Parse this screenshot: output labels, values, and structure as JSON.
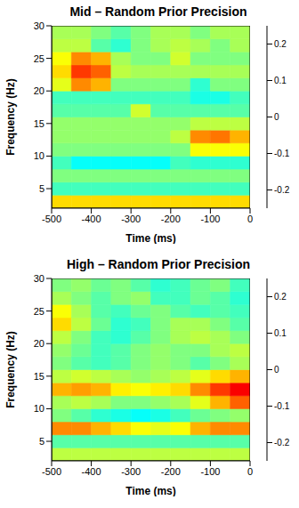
{
  "chart_data": [
    {
      "type": "heatmap",
      "title": "Mid – Random Prior Precision",
      "x_label": "Time (ms)",
      "y_label": "Frequency (Hz)",
      "xlim": [
        -500,
        0
      ],
      "xticks": [
        -500,
        -400,
        -300,
        -200,
        -100,
        0
      ],
      "ylim": [
        2,
        30
      ],
      "yticks": [
        5,
        10,
        15,
        20,
        25,
        30
      ],
      "x_bins": [
        -500,
        -450,
        -400,
        -350,
        -300,
        -250,
        -200,
        -150,
        -100,
        -50,
        0
      ],
      "y_bins": [
        2,
        4,
        6,
        8,
        10,
        12,
        14,
        16,
        18,
        20,
        22,
        24,
        26,
        28,
        30
      ],
      "cells": [
        [
          0.08,
          0.08,
          0.08,
          0.08,
          0.08,
          0.08,
          0.08,
          0.08,
          0.08,
          0.08
        ],
        [
          -0.03,
          -0.03,
          -0.03,
          -0.03,
          -0.03,
          -0.03,
          -0.03,
          -0.03,
          -0.03,
          -0.03
        ],
        [
          0.0,
          0.0,
          0.0,
          0.0,
          0.0,
          0.0,
          0.0,
          0.0,
          0.0,
          0.0
        ],
        [
          -0.03,
          -0.06,
          -0.06,
          -0.06,
          -0.06,
          -0.06,
          -0.03,
          -0.04,
          -0.04,
          -0.04
        ],
        [
          0.0,
          0.0,
          0.0,
          0.0,
          0.0,
          0.0,
          0.0,
          0.06,
          0.06,
          0.06
        ],
        [
          0.01,
          0.01,
          0.01,
          0.01,
          0.01,
          0.01,
          0.03,
          0.12,
          0.13,
          0.1
        ],
        [
          0.01,
          0.01,
          0.01,
          0.01,
          0.01,
          0.01,
          0.01,
          0.03,
          0.03,
          0.03
        ],
        [
          -0.02,
          -0.02,
          -0.02,
          -0.02,
          0.04,
          -0.02,
          -0.02,
          -0.02,
          -0.02,
          -0.02
        ],
        [
          -0.03,
          -0.03,
          -0.03,
          -0.03,
          -0.03,
          -0.03,
          -0.03,
          -0.05,
          -0.05,
          -0.03
        ],
        [
          0.05,
          0.12,
          0.1,
          0.0,
          0.0,
          0.0,
          0.0,
          -0.04,
          0.0,
          0.0
        ],
        [
          0.08,
          0.16,
          0.14,
          0.03,
          0.02,
          0.02,
          0.02,
          0.02,
          0.02,
          0.02
        ],
        [
          0.06,
          0.12,
          0.1,
          0.02,
          0.0,
          0.0,
          0.04,
          0.0,
          0.0,
          0.0
        ],
        [
          0.03,
          0.03,
          -0.02,
          -0.04,
          0.0,
          0.02,
          0.03,
          0.02,
          0.0,
          0.02
        ],
        [
          0.02,
          0.02,
          0.0,
          -0.02,
          0.0,
          0.02,
          0.02,
          0.0,
          0.02,
          0.02
        ]
      ],
      "color": "jet",
      "colorbar_lim": [
        -0.25,
        0.25
      ],
      "colorbar_ticks": [
        -0.2,
        -0.1,
        0,
        0.1,
        0.2
      ]
    },
    {
      "type": "heatmap",
      "title": "High – Random Prior Precision",
      "x_label": "Time (ms)",
      "y_label": "Frequency (Hz)",
      "xlim": [
        -500,
        0
      ],
      "xticks": [
        -500,
        -400,
        -300,
        -200,
        -100,
        0
      ],
      "ylim": [
        2,
        30
      ],
      "yticks": [
        5,
        10,
        15,
        20,
        25,
        30
      ],
      "x_bins": [
        -500,
        -450,
        -400,
        -350,
        -300,
        -250,
        -200,
        -150,
        -100,
        -50,
        0
      ],
      "y_bins": [
        2,
        4,
        6,
        8,
        10,
        12,
        14,
        16,
        18,
        20,
        22,
        24,
        26,
        28,
        30
      ],
      "cells": [
        [
          0.03,
          0.03,
          0.03,
          0.03,
          0.03,
          0.03,
          0.03,
          0.03,
          0.03,
          0.03
        ],
        [
          -0.02,
          -0.02,
          -0.02,
          -0.02,
          -0.02,
          -0.02,
          -0.02,
          -0.02,
          -0.02,
          -0.02
        ],
        [
          0.12,
          0.12,
          0.1,
          0.08,
          0.06,
          0.05,
          0.06,
          0.1,
          0.12,
          0.12
        ],
        [
          0.0,
          -0.02,
          -0.04,
          -0.05,
          -0.06,
          -0.05,
          -0.03,
          -0.01,
          0.0,
          0.01
        ],
        [
          0.02,
          0.03,
          0.02,
          0.0,
          0.0,
          0.01,
          0.02,
          0.05,
          0.1,
          0.14
        ],
        [
          0.1,
          0.11,
          0.1,
          0.07,
          0.06,
          0.07,
          0.08,
          0.12,
          0.16,
          0.19
        ],
        [
          0.03,
          0.04,
          0.03,
          0.02,
          0.01,
          0.02,
          0.03,
          0.05,
          0.08,
          0.1
        ],
        [
          0.0,
          -0.02,
          -0.03,
          -0.02,
          0.0,
          0.01,
          0.0,
          -0.02,
          0.0,
          0.02
        ],
        [
          0.01,
          -0.01,
          -0.03,
          -0.02,
          0.0,
          0.01,
          0.0,
          0.0,
          0.02,
          0.03
        ],
        [
          0.03,
          0.0,
          -0.03,
          -0.04,
          -0.02,
          0.0,
          0.02,
          0.03,
          0.02,
          0.0
        ],
        [
          0.08,
          0.03,
          -0.01,
          -0.04,
          -0.03,
          0.0,
          0.02,
          0.02,
          0.0,
          -0.02
        ],
        [
          0.06,
          0.02,
          -0.02,
          -0.03,
          -0.01,
          0.0,
          -0.02,
          -0.03,
          -0.02,
          -0.03
        ],
        [
          0.02,
          0.0,
          -0.02,
          0.0,
          0.01,
          -0.03,
          -0.03,
          -0.01,
          -0.02,
          -0.04
        ],
        [
          0.0,
          0.01,
          -0.01,
          0.0,
          -0.02,
          -0.04,
          -0.03,
          -0.01,
          0.0,
          -0.03
        ]
      ],
      "color": "jet",
      "colorbar_lim": [
        -0.25,
        0.25
      ],
      "colorbar_ticks": [
        -0.2,
        -0.1,
        0,
        0.1,
        0.2
      ]
    }
  ]
}
